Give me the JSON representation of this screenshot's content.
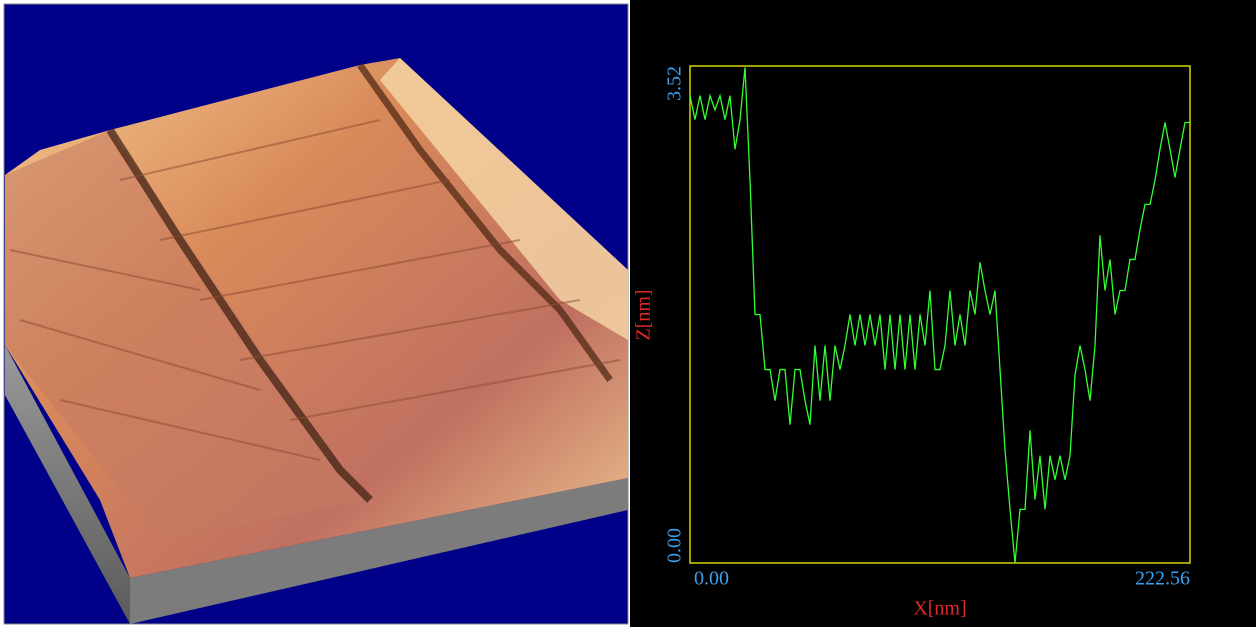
{
  "chart_data": {
    "type": "line",
    "xlabel": "X[nm]",
    "ylabel": "Z[nm]",
    "x": [
      0,
      2.23,
      4.45,
      6.68,
      8.9,
      11.13,
      13.35,
      15.58,
      17.8,
      20.03,
      22.26,
      24.48,
      26.71,
      28.93,
      31.16,
      33.38,
      35.61,
      37.84,
      40.06,
      42.29,
      44.51,
      46.74,
      48.96,
      51.19,
      53.41,
      55.64,
      57.87,
      60.09,
      62.32,
      64.54,
      66.77,
      68.99,
      71.22,
      73.44,
      75.67,
      77.9,
      80.12,
      82.35,
      84.57,
      86.8,
      89.02,
      91.25,
      93.48,
      95.7,
      97.93,
      100.15,
      102.38,
      104.6,
      106.83,
      109.05,
      111.28,
      113.51,
      115.73,
      117.96,
      120.18,
      122.41,
      124.63,
      126.86,
      129.08,
      131.31,
      133.54,
      135.76,
      137.99,
      140.21,
      142.44,
      144.66,
      146.89,
      149.12,
      151.34,
      153.57,
      155.79,
      158.02,
      160.24,
      162.47,
      164.69,
      166.92,
      169.15,
      171.37,
      173.6,
      175.82,
      178.05,
      180.27,
      182.5,
      184.72,
      186.95,
      189.18,
      191.4,
      193.63,
      195.85,
      198.08,
      200.3,
      202.53,
      204.76,
      206.98,
      209.21,
      211.43,
      213.66,
      215.88,
      218.11,
      220.33,
      222.56
    ],
    "values": [
      3.31,
      3.14,
      3.31,
      3.14,
      3.31,
      3.21,
      3.31,
      3.14,
      3.31,
      2.93,
      3.14,
      3.51,
      2.71,
      1.76,
      1.76,
      1.37,
      1.37,
      1.15,
      1.37,
      1.37,
      0.98,
      1.37,
      1.37,
      1.15,
      0.98,
      1.54,
      1.15,
      1.54,
      1.15,
      1.54,
      1.37,
      1.54,
      1.76,
      1.54,
      1.76,
      1.54,
      1.76,
      1.54,
      1.76,
      1.37,
      1.76,
      1.37,
      1.76,
      1.37,
      1.76,
      1.37,
      1.76,
      1.54,
      1.93,
      1.37,
      1.37,
      1.54,
      1.93,
      1.54,
      1.76,
      1.54,
      1.93,
      1.76,
      2.13,
      1.93,
      1.76,
      1.93,
      1.37,
      0.8,
      0.38,
      0,
      0.38,
      0.38,
      0.94,
      0.45,
      0.76,
      0.38,
      0.76,
      0.59,
      0.76,
      0.59,
      0.76,
      1.33,
      1.54,
      1.37,
      1.15,
      1.54,
      2.32,
      1.93,
      2.15,
      1.76,
      1.93,
      1.93,
      2.15,
      2.15,
      2.36,
      2.54,
      2.54,
      2.71,
      2.93,
      3.12,
      2.93,
      2.73,
      2.93,
      3.12,
      3.12
    ],
    "color": "#33ff33",
    "xlim": [
      0,
      222.56
    ],
    "xticks": [
      {
        "value": 0,
        "label": "0.00"
      },
      {
        "value": 222.56,
        "label": "222.56"
      }
    ],
    "ylim": [
      0,
      3.52
    ],
    "yticks": [
      {
        "value": 0,
        "label": "0.00"
      },
      3.52
    ]
  }
}
